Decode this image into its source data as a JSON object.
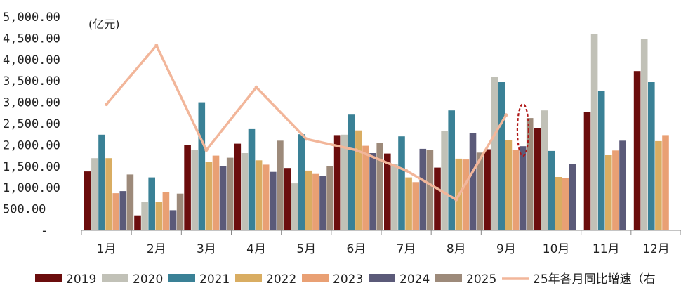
{
  "chart_data": {
    "type": "bar",
    "unit_label": "(亿元)",
    "categories": [
      "1月",
      "2月",
      "3月",
      "4月",
      "5月",
      "6月",
      "7月",
      "8月",
      "9月",
      "10月",
      "11月",
      "12月"
    ],
    "ylim": [
      0,
      5000
    ],
    "y_ticks": [
      "-",
      "500.00",
      "1,000.00",
      "1,500.00",
      "2,000.00",
      "2,500.00",
      "3,000.00",
      "3,500.00",
      "4,000.00",
      "4,500.00",
      "5,000.00"
    ],
    "y_tick_values": [
      0,
      500,
      1000,
      1500,
      2000,
      2500,
      3000,
      3500,
      4000,
      4500,
      5000
    ],
    "series": [
      {
        "name": "2019",
        "color": "#6b0d0d",
        "values": [
          1380,
          350,
          1990,
          2030,
          1460,
          2230,
          1800,
          1470,
          1900,
          2390,
          2770,
          3730
        ]
      },
      {
        "name": "2020",
        "color": "#c1c1b7",
        "values": [
          1690,
          670,
          1880,
          1810,
          1100,
          2240,
          1550,
          2330,
          3600,
          2810,
          4590,
          4480
        ]
      },
      {
        "name": "2021",
        "color": "#3a8196",
        "values": [
          2240,
          1240,
          3000,
          2370,
          2250,
          2710,
          2200,
          2810,
          3470,
          1860,
          3270,
          3470
        ]
      },
      {
        "name": "2022",
        "color": "#d9ad62",
        "values": [
          1690,
          670,
          1610,
          1640,
          1400,
          2340,
          1240,
          1680,
          2120,
          1250,
          1760,
          2090
        ]
      },
      {
        "name": "2023",
        "color": "#e9a074",
        "values": [
          870,
          890,
          1750,
          1540,
          1320,
          1980,
          1130,
          1660,
          1890,
          1230,
          1870,
          2230
        ]
      },
      {
        "name": "2024",
        "color": "#5b5a79",
        "values": [
          920,
          470,
          1510,
          1370,
          1270,
          1810,
          1910,
          2280,
          1970,
          1560,
          2100,
          null
        ]
      },
      {
        "name": "2025",
        "color": "#9d8a7a",
        "values": [
          1310,
          860,
          1700,
          2100,
          1510,
          2040,
          1880,
          1820,
          2630,
          null,
          null,
          null
        ]
      }
    ],
    "line_series": {
      "name": "25年各月同比增速（右",
      "color": "#f2b69a",
      "axis": "right",
      "plot_positions": [
        2950,
        4330,
        1880,
        3350,
        2140,
        1880,
        1400,
        720,
        2700
      ]
    },
    "annotation": {
      "type": "dashed-ellipse",
      "color": "#b01818",
      "category": "9月"
    },
    "legend_placement": "bottom"
  }
}
